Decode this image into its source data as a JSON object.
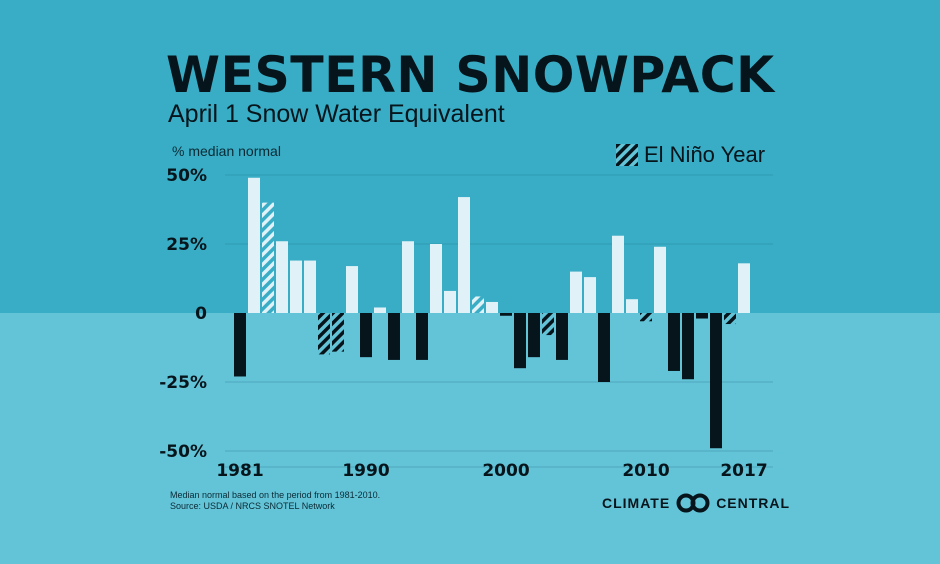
{
  "header": {
    "title": "WESTERN SNOWPACK",
    "subtitle": "April 1 Snow Water Equivalent"
  },
  "legend": {
    "label": "El Niño Year"
  },
  "footer": {
    "note": "Median normal based on the period from 1981-2010.",
    "source": "Source: USDA / NRCS SNOTEL Network",
    "logo_left": "CLIMATE",
    "logo_right": "CENTRAL"
  },
  "colors": {
    "positive": "#e0f2f7",
    "negative": "#06151c",
    "bg_top": "#39adc5",
    "bg_bottom": "#63c3d7"
  },
  "chart_data": {
    "type": "bar",
    "title": "WESTERN SNOWPACK",
    "subtitle": "April 1 Snow Water Equivalent",
    "ylabel": "% median normal",
    "xlabel": "",
    "ylim": [
      -50,
      50
    ],
    "yticks": [
      50,
      25,
      0,
      -25,
      -50
    ],
    "ytick_labels": [
      "50%",
      "25%",
      "0",
      "-25%",
      "-50%"
    ],
    "xtick_labels": [
      "1981",
      "1990",
      "2000",
      "2010",
      "2017"
    ],
    "grid": true,
    "legend_position": "top-right",
    "categories": [
      1981,
      1982,
      1983,
      1984,
      1985,
      1986,
      1987,
      1988,
      1989,
      1990,
      1991,
      1992,
      1993,
      1994,
      1995,
      1996,
      1997,
      1998,
      1999,
      2000,
      2001,
      2002,
      2003,
      2004,
      2005,
      2006,
      2007,
      2008,
      2009,
      2010,
      2011,
      2012,
      2013,
      2014,
      2015,
      2016,
      2017
    ],
    "values": [
      -23,
      49,
      40,
      26,
      19,
      19,
      -15,
      -14,
      17,
      -16,
      2,
      -17,
      26,
      -17,
      25,
      8,
      42,
      6,
      4,
      -1,
      -20,
      -16,
      -8,
      -17,
      15,
      13,
      -25,
      28,
      5,
      -3,
      24,
      -21,
      -24,
      -2,
      -49,
      -4,
      18
    ],
    "el_nino": [
      1983,
      1987,
      1988,
      1998,
      2003,
      2010,
      2016
    ]
  }
}
